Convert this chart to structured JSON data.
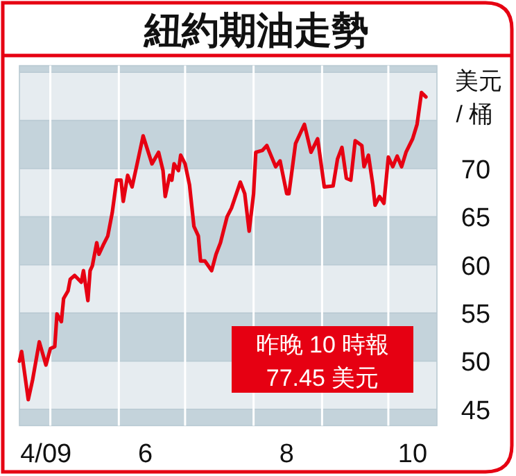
{
  "chart_data": {
    "type": "line",
    "title": "紐約期油走勢",
    "ylabel": "美元 / 桶",
    "annotations": [
      "昨晚 10 時報",
      "77.45 美元"
    ],
    "x": [
      "2009-04-17",
      "2009-04-18",
      "2009-04-21",
      "2009-04-23",
      "2009-04-26",
      "2009-04-29",
      "2009-05-01",
      "2009-05-03",
      "2009-05-04",
      "2009-05-06",
      "2009-05-07",
      "2009-05-09",
      "2009-05-10",
      "2009-05-12",
      "2009-05-15",
      "2009-05-16",
      "2009-05-18",
      "2009-05-19",
      "2009-05-20",
      "2009-05-22",
      "2009-05-23",
      "2009-05-25",
      "2009-05-27",
      "2009-05-29",
      "2009-05-31",
      "2009-06-02",
      "2009-06-03",
      "2009-06-05",
      "2009-06-07",
      "2009-06-09",
      "2009-06-12",
      "2009-06-16",
      "2009-06-19",
      "2009-06-21",
      "2009-06-22",
      "2009-06-24",
      "2009-06-25",
      "2009-06-26",
      "2009-06-28",
      "2009-06-29",
      "2009-07-01",
      "2009-07-03",
      "2009-07-05",
      "2009-07-07",
      "2009-07-08",
      "2009-07-10",
      "2009-07-13",
      "2009-07-15",
      "2009-07-17",
      "2009-07-20",
      "2009-07-22",
      "2009-07-26",
      "2009-07-28",
      "2009-07-30",
      "2009-08-01",
      "2009-08-02",
      "2009-08-05",
      "2009-08-07",
      "2009-08-11",
      "2009-08-13",
      "2009-08-16",
      "2009-08-17",
      "2009-08-20",
      "2009-08-24",
      "2009-08-27",
      "2009-08-30",
      "2009-09-02",
      "2009-09-06",
      "2009-09-08",
      "2009-09-10",
      "2009-09-12",
      "2009-09-14",
      "2009-09-16",
      "2009-09-19",
      "2009-09-20",
      "2009-09-22",
      "2009-09-24",
      "2009-09-25",
      "2009-09-27",
      "2009-09-29",
      "2009-10-01",
      "2009-10-03",
      "2009-10-05",
      "2009-10-07",
      "2009-10-09",
      "2009-10-12",
      "2009-10-14",
      "2009-10-16",
      "2009-10-18"
    ],
    "series": [
      {
        "color": "#e60012",
        "values": [
          50.0,
          51.0,
          46.0,
          48.1,
          52.0,
          49.6,
          51.3,
          51.5,
          54.9,
          54.1,
          56.5,
          57.3,
          58.5,
          58.9,
          58.2,
          59.4,
          56.3,
          59.4,
          59.9,
          62.3,
          61.1,
          62.1,
          63.0,
          65.4,
          68.8,
          68.8,
          66.6,
          69.3,
          68.1,
          70.2,
          73.4,
          70.5,
          71.7,
          69.8,
          67.1,
          69.3,
          68.8,
          70.5,
          69.8,
          71.4,
          70.5,
          68.3,
          64.0,
          63.0,
          60.4,
          60.4,
          59.4,
          61.1,
          62.3,
          65.0,
          65.9,
          68.6,
          67.4,
          63.5,
          67.4,
          71.7,
          71.9,
          72.4,
          70.2,
          70.8,
          67.4,
          67.4,
          72.6,
          74.6,
          71.7,
          73.1,
          68.1,
          68.2,
          71.0,
          72.2,
          69.0,
          68.8,
          72.9,
          72.4,
          70.2,
          71.4,
          68.3,
          66.2,
          67.1,
          66.4,
          71.2,
          70.2,
          71.3,
          70.2,
          71.7,
          73.1,
          74.6,
          77.9,
          77.45
        ]
      }
    ],
    "xlim": [
      "2009-04-17",
      "2009-10-23"
    ],
    "xticks": [
      {
        "value": "2009-04-29",
        "label": "4/09"
      },
      {
        "value": "2009-06-13",
        "label": "6"
      },
      {
        "value": "2009-08-16",
        "label": "8"
      },
      {
        "value": "2009-10-12",
        "label": "10"
      },
      {
        "value": "2009-05-01",
        "label": null
      },
      {
        "value": "2009-06-01",
        "label": null
      },
      {
        "value": "2009-07-01",
        "label": null
      },
      {
        "value": "2009-08-01",
        "label": null
      },
      {
        "value": "2009-09-01",
        "label": null
      },
      {
        "value": "2009-10-01",
        "label": null
      }
    ],
    "ylim": [
      43.3,
      80.7
    ],
    "yticks": [
      45,
      50,
      55,
      60,
      65,
      70,
      {
        "value": 75,
        "label": null
      },
      {
        "value": 80,
        "label": null
      }
    ],
    "grid": true,
    "marker": "none",
    "line_style": "solid"
  }
}
